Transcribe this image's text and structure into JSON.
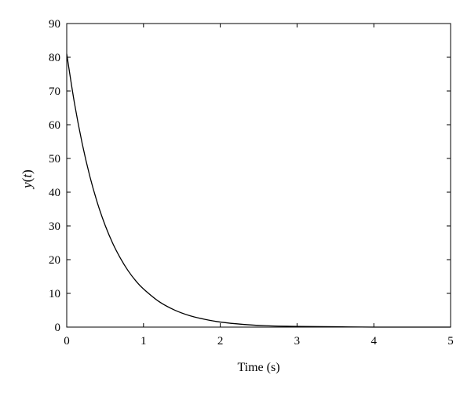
{
  "chart_data": {
    "type": "line",
    "xlabel": "Time (s)",
    "ylabel": {
      "var": "y",
      "open": "(",
      "arg": "t",
      "close": ")"
    },
    "xlim": [
      0,
      5
    ],
    "ylim": [
      0,
      90
    ],
    "xticks": [
      "0",
      "1",
      "2",
      "3",
      "4",
      "5"
    ],
    "yticks": [
      "0",
      "10",
      "20",
      "30",
      "40",
      "50",
      "60",
      "70",
      "80",
      "90"
    ],
    "grid": false,
    "series": [
      {
        "color": "#000000",
        "x": [
          0,
          0.1,
          0.2,
          0.3,
          0.4,
          0.5,
          0.6,
          0.7,
          0.8,
          0.9,
          1.0,
          1.2,
          1.4,
          1.6,
          1.8,
          2.0,
          2.3,
          2.6,
          3.0,
          3.5,
          4.0,
          4.5,
          5.0
        ],
        "y": [
          81,
          66.5,
          54.6,
          44.8,
          36.8,
          30.2,
          24.8,
          20.4,
          16.7,
          13.7,
          11.3,
          7.6,
          5.1,
          3.4,
          2.3,
          1.5,
          0.8,
          0.4,
          0.2,
          0.1,
          0,
          0,
          0
        ]
      }
    ]
  }
}
